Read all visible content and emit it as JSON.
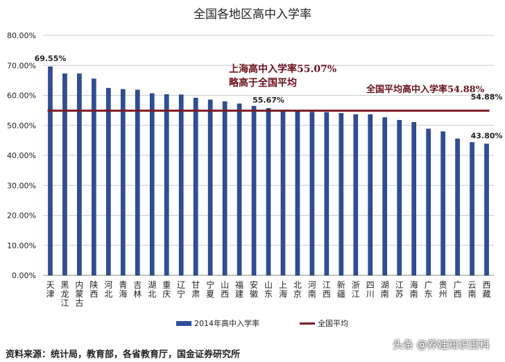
{
  "chart_data": {
    "type": "bar",
    "title": "全国各地区高中入学率",
    "categories": [
      "天津",
      "黑龙江",
      "内蒙古",
      "陕西",
      "河北",
      "青海",
      "吉林",
      "湖北",
      "重庆",
      "辽宁",
      "甘肃",
      "宁夏",
      "山西",
      "福建",
      "安徽",
      "山东",
      "上海",
      "北京",
      "河南",
      "江西",
      "新疆",
      "浙江",
      "四川",
      "湖南",
      "江苏",
      "海南",
      "广东",
      "贵州",
      "广西",
      "云南",
      "西藏"
    ],
    "series": [
      {
        "name": "2014年高中入学率",
        "type": "bar",
        "color": "#2e4e9c",
        "values": [
          69.55,
          67.2,
          67.2,
          65.5,
          62.4,
          62.0,
          61.8,
          60.6,
          60.3,
          60.2,
          59.1,
          58.5,
          57.9,
          57.2,
          56.4,
          55.67,
          55.07,
          54.5,
          54.4,
          54.3,
          54.0,
          53.6,
          53.6,
          52.6,
          51.7,
          51.0,
          48.8,
          47.9,
          45.5,
          44.3,
          43.8
        ]
      },
      {
        "name": "全国平均",
        "type": "line",
        "color": "#7a1a22",
        "value": 54.88
      }
    ],
    "data_labels": [
      {
        "category": "天津",
        "text": "69.55%"
      },
      {
        "category": "山东",
        "text": "55.67%"
      },
      {
        "category": "西藏",
        "text": "43.80%"
      },
      {
        "category": "西藏",
        "text": "54.88%",
        "series": "全国平均"
      }
    ],
    "ylim": [
      0,
      80
    ],
    "yticks": [
      "0.00%",
      "10.00%",
      "20.00%",
      "30.00%",
      "40.00%",
      "50.00%",
      "60.00%",
      "70.00%",
      "80.00%"
    ],
    "grid": true,
    "legend": "bottom",
    "annotations": [
      "上海高中入学率55.07%",
      "略高于全国平均",
      "全国平均高中入学率54.88%"
    ]
  },
  "source": "资料来源：统计局，教育部，各省教育厅，国金证券研究所",
  "watermark": "头条 @养娃知识百科"
}
